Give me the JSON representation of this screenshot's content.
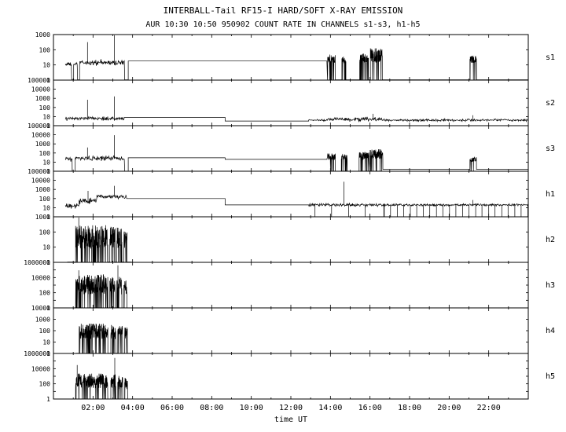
{
  "header": {
    "title": "INTERBALL-Tail RF15-I HARD/SOFT X-RAY EMISSION",
    "subtitle": "AUR 10:30 10:50 950902  COUNT RATE IN CHANNELS s1-s3, h1-h5"
  },
  "chart_data": {
    "type": "line",
    "yscale": "log",
    "grid": false,
    "xlabel": "time UT",
    "x_range_hours": [
      0,
      24
    ],
    "x_ticks": [
      {
        "hour": 2,
        "label": "02:00"
      },
      {
        "hour": 4,
        "label": "04:00"
      },
      {
        "hour": 6,
        "label": "06:00"
      },
      {
        "hour": 8,
        "label": "08:00"
      },
      {
        "hour": 10,
        "label": "10:00"
      },
      {
        "hour": 12,
        "label": "12:00"
      },
      {
        "hour": 14,
        "label": "14:00"
      },
      {
        "hour": 16,
        "label": "16:00"
      },
      {
        "hour": 18,
        "label": "18:00"
      },
      {
        "hour": 20,
        "label": "20:00"
      },
      {
        "hour": 22,
        "label": "22:00"
      }
    ],
    "channels": [
      {
        "name": "s1",
        "decades": 3,
        "ytick_labels": [
          "1000",
          "100",
          "10",
          "1"
        ],
        "ytick_decades": [
          3,
          2,
          1,
          0
        ],
        "segments": [
          {
            "type": "noise",
            "t0": 0.6,
            "t1": 0.92,
            "base": 11,
            "s": 0.12
          },
          {
            "type": "flat",
            "t0": 0.92,
            "t1": 1.02,
            "v": 1.05
          },
          {
            "type": "noise",
            "t0": 1.02,
            "t1": 1.22,
            "base": 11,
            "s": 0.1
          },
          {
            "type": "flat",
            "t0": 1.22,
            "t1": 1.32,
            "v": 1.05
          },
          {
            "type": "noise",
            "t0": 1.32,
            "t1": 3.6,
            "base": 14,
            "s": 0.18,
            "spikes": [
              {
                "t": 1.72,
                "v": 320
              },
              {
                "t": 3.08,
                "v": 900
              }
            ]
          },
          {
            "type": "flat",
            "t0": 3.6,
            "t1": 3.78,
            "v": 1.05
          },
          {
            "type": "flat",
            "t0": 3.78,
            "t1": 13.82,
            "v": 18
          },
          {
            "type": "burst",
            "t0": 13.85,
            "t1": 14.25,
            "lo": 14,
            "hi": 48
          },
          {
            "type": "flat",
            "t0": 14.25,
            "t1": 14.58,
            "v": 1.05
          },
          {
            "type": "burst",
            "t0": 14.58,
            "t1": 14.78,
            "lo": 12,
            "hi": 36
          },
          {
            "type": "flat",
            "t0": 14.78,
            "t1": 15.48,
            "v": 1.05
          },
          {
            "type": "burst",
            "t0": 15.48,
            "t1": 15.92,
            "lo": 14,
            "hi": 60
          },
          {
            "type": "flat",
            "t0": 15.92,
            "t1": 16.02,
            "v": 1.05
          },
          {
            "type": "burst",
            "t0": 16.02,
            "t1": 16.62,
            "lo": 15,
            "hi": 130
          },
          {
            "type": "flat",
            "t0": 16.62,
            "t1": 21.05,
            "v": 1.05
          },
          {
            "type": "burst",
            "t0": 21.05,
            "t1": 21.38,
            "lo": 14,
            "hi": 42
          },
          {
            "type": "flat",
            "t0": 21.38,
            "t1": 23.98,
            "v": 1.05
          }
        ]
      },
      {
        "name": "s2",
        "decades": 5,
        "ytick_labels": [
          "100000",
          "10000",
          "1000",
          "100",
          "10",
          "1"
        ],
        "ytick_decades": [
          5,
          4,
          3,
          2,
          1,
          0
        ],
        "segments": [
          {
            "type": "noise",
            "t0": 0.6,
            "t1": 3.6,
            "base": 6,
            "s": 0.18,
            "spikes": [
              {
                "t": 1.72,
                "v": 700
              },
              {
                "t": 3.08,
                "v": 1600
              }
            ]
          },
          {
            "type": "flat",
            "t0": 3.6,
            "t1": 8.68,
            "v": 8
          },
          {
            "type": "flat",
            "t0": 8.68,
            "t1": 12.9,
            "v": 3.2
          },
          {
            "type": "noise",
            "t0": 12.9,
            "t1": 13.8,
            "base": 4,
            "s": 0.1
          },
          {
            "type": "noise",
            "t0": 13.8,
            "t1": 16.6,
            "base": 5,
            "s": 0.2,
            "spikes": [
              {
                "t": 16.15,
                "v": 20
              }
            ]
          },
          {
            "type": "noise",
            "t0": 16.6,
            "t1": 23.98,
            "base": 4,
            "s": 0.13,
            "spikes": [
              {
                "t": 21.2,
                "v": 14
              }
            ]
          }
        ]
      },
      {
        "name": "s3",
        "decades": 5,
        "ytick_labels": [
          "100000",
          "10000",
          "1000",
          "100",
          "10",
          "1"
        ],
        "ytick_decades": [
          5,
          4,
          3,
          2,
          1,
          0
        ],
        "segments": [
          {
            "type": "noise",
            "t0": 0.6,
            "t1": 0.95,
            "base": 20,
            "s": 0.22
          },
          {
            "type": "flat",
            "t0": 0.95,
            "t1": 1.1,
            "v": 1.05
          },
          {
            "type": "noise",
            "t0": 1.1,
            "t1": 3.6,
            "base": 25,
            "s": 0.26,
            "spikes": [
              {
                "t": 1.72,
                "v": 400
              },
              {
                "t": 3.08,
                "v": 9000
              }
            ]
          },
          {
            "type": "flat",
            "t0": 3.6,
            "t1": 3.78,
            "v": 1.05
          },
          {
            "type": "flat",
            "t0": 3.78,
            "t1": 8.68,
            "v": 30
          },
          {
            "type": "flat",
            "t0": 8.68,
            "t1": 13.82,
            "v": 20
          },
          {
            "type": "burst",
            "t0": 13.85,
            "t1": 14.25,
            "lo": 18,
            "hi": 90
          },
          {
            "type": "flat",
            "t0": 14.25,
            "t1": 14.55,
            "v": 1.05
          },
          {
            "type": "burst",
            "t0": 14.55,
            "t1": 14.85,
            "lo": 18,
            "hi": 70
          },
          {
            "type": "flat",
            "t0": 14.85,
            "t1": 15.45,
            "v": 1.05
          },
          {
            "type": "burst",
            "t0": 15.45,
            "t1": 15.95,
            "lo": 20,
            "hi": 130
          },
          {
            "type": "burst",
            "t0": 16.0,
            "t1": 16.65,
            "lo": 22,
            "hi": 260
          },
          {
            "type": "flat",
            "t0": 16.65,
            "t1": 21.05,
            "v": 1.6
          },
          {
            "type": "burst",
            "t0": 21.05,
            "t1": 21.38,
            "lo": 10,
            "hi": 40
          },
          {
            "type": "flat",
            "t0": 21.38,
            "t1": 23.98,
            "v": 1.6
          }
        ]
      },
      {
        "name": "h1",
        "decades": 5,
        "ytick_labels": [
          "100000",
          "10000",
          "1000",
          "100",
          "10",
          "1"
        ],
        "ytick_decades": [
          5,
          4,
          3,
          2,
          1,
          0
        ],
        "segments": [
          {
            "type": "noise",
            "t0": 0.6,
            "t1": 1.3,
            "base": 15,
            "s": 0.28
          },
          {
            "type": "noise",
            "t0": 1.3,
            "t1": 2.2,
            "base": 60,
            "s": 0.3,
            "spikes": [
              {
                "t": 1.75,
                "v": 700
              }
            ]
          },
          {
            "type": "noise",
            "t0": 2.2,
            "t1": 3.7,
            "base": 160,
            "s": 0.2,
            "spikes": [
              {
                "t": 3.08,
                "v": 2500
              }
            ]
          },
          {
            "type": "flat",
            "t0": 3.7,
            "t1": 8.68,
            "v": 100
          },
          {
            "type": "flat",
            "t0": 8.68,
            "t1": 12.9,
            "v": 20
          },
          {
            "type": "noise",
            "t0": 12.9,
            "t1": 16.6,
            "base": 20,
            "s": 0.15,
            "spikes": [
              {
                "t": 14.68,
                "v": 7000
              }
            ],
            "dropEvery": 0.85,
            "dropFrom": 13.2
          },
          {
            "type": "noise",
            "t0": 16.6,
            "t1": 23.98,
            "base": 20,
            "s": 0.12,
            "spikes": [
              {
                "t": 21.2,
                "v": 70
              }
            ],
            "dropEvery": 0.33,
            "dropFrom": 16.7
          }
        ]
      },
      {
        "name": "h2",
        "decades": 3,
        "ytick_labels": [
          "1000",
          "100",
          "10",
          "1"
        ],
        "ytick_decades": [
          3,
          2,
          1,
          0
        ],
        "segments": [
          {
            "type": "flat",
            "t0": 0.7,
            "t1": 1.12,
            "v": 1.05
          },
          {
            "type": "burst",
            "t0": 1.12,
            "t1": 2.75,
            "lo": 8,
            "hi": 280,
            "spikes": [
              {
                "t": 1.28,
                "v": 900
              }
            ]
          },
          {
            "type": "flat",
            "t0": 2.75,
            "t1": 2.85,
            "v": 1.05
          },
          {
            "type": "burst",
            "t0": 2.85,
            "t1": 3.12,
            "lo": 8,
            "hi": 220
          },
          {
            "type": "flat",
            "t0": 3.12,
            "t1": 3.2,
            "v": 1.05
          },
          {
            "type": "burst",
            "t0": 3.2,
            "t1": 3.46,
            "lo": 8,
            "hi": 200
          },
          {
            "type": "flat",
            "t0": 3.46,
            "t1": 3.56,
            "v": 1.05
          },
          {
            "type": "burst",
            "t0": 3.56,
            "t1": 3.72,
            "lo": 8,
            "hi": 150
          },
          {
            "type": "flat",
            "t0": 3.72,
            "t1": 3.95,
            "v": 1.05
          }
        ]
      },
      {
        "name": "h3",
        "decades": 6,
        "ytick_labels": [
          "1000000",
          "10000",
          "100",
          "1"
        ],
        "ytick_decades": [
          6,
          4,
          2,
          0
        ],
        "segments": [
          {
            "type": "flat",
            "t0": 0.7,
            "t1": 1.12,
            "v": 1.05
          },
          {
            "type": "burst",
            "t0": 1.12,
            "t1": 2.75,
            "lo": 60,
            "hi": 25000,
            "spikes": [
              {
                "t": 1.28,
                "v": 90000
              }
            ]
          },
          {
            "type": "flat",
            "t0": 2.75,
            "t1": 2.85,
            "v": 1.05
          },
          {
            "type": "burst",
            "t0": 2.85,
            "t1": 3.12,
            "lo": 60,
            "hi": 12000
          },
          {
            "type": "flat",
            "t0": 3.12,
            "t1": 3.2,
            "v": 1.05
          },
          {
            "type": "burst",
            "t0": 3.2,
            "t1": 3.46,
            "lo": 60,
            "hi": 12000,
            "spikes": [
              {
                "t": 3.26,
                "v": 400000
              }
            ]
          },
          {
            "type": "flat",
            "t0": 3.46,
            "t1": 3.56,
            "v": 1.05
          },
          {
            "type": "burst",
            "t0": 3.56,
            "t1": 3.72,
            "lo": 50,
            "hi": 6000
          },
          {
            "type": "flat",
            "t0": 3.72,
            "t1": 3.95,
            "v": 1.05
          }
        ]
      },
      {
        "name": "h4",
        "decades": 4,
        "ytick_labels": [
          "10000",
          "1000",
          "100",
          "10",
          "1"
        ],
        "ytick_decades": [
          4,
          3,
          2,
          1,
          0
        ],
        "segments": [
          {
            "type": "flat",
            "t0": 1.15,
            "t1": 1.3,
            "v": 1.05
          },
          {
            "type": "burst",
            "t0": 1.3,
            "t1": 2.75,
            "lo": 18,
            "hi": 420
          },
          {
            "type": "flat",
            "t0": 2.75,
            "t1": 2.9,
            "v": 1.05
          },
          {
            "type": "burst",
            "t0": 2.9,
            "t1": 3.15,
            "lo": 18,
            "hi": 320
          },
          {
            "type": "flat",
            "t0": 3.15,
            "t1": 3.25,
            "v": 1.05
          },
          {
            "type": "burst",
            "t0": 3.25,
            "t1": 3.5,
            "lo": 18,
            "hi": 300
          },
          {
            "type": "flat",
            "t0": 3.5,
            "t1": 3.6,
            "v": 1.05
          },
          {
            "type": "burst",
            "t0": 3.6,
            "t1": 3.75,
            "lo": 15,
            "hi": 220
          },
          {
            "type": "flat",
            "t0": 3.75,
            "t1": 3.95,
            "v": 1.05
          }
        ]
      },
      {
        "name": "h5",
        "decades": 6,
        "ytick_labels": [
          "1000000",
          "10000",
          "100",
          "1"
        ],
        "ytick_decades": [
          6,
          4,
          2,
          0
        ],
        "segments": [
          {
            "type": "flat",
            "t0": 0.7,
            "t1": 1.12,
            "v": 1.05
          },
          {
            "type": "burst",
            "t0": 1.12,
            "t1": 2.75,
            "lo": 25,
            "hi": 2500,
            "spikes": [
              {
                "t": 1.2,
                "v": 30000
              }
            ]
          },
          {
            "type": "flat",
            "t0": 2.75,
            "t1": 2.9,
            "v": 1.05
          },
          {
            "type": "burst",
            "t0": 2.9,
            "t1": 3.15,
            "lo": 25,
            "hi": 1800,
            "spikes": [
              {
                "t": 3.1,
                "v": 250000
              }
            ]
          },
          {
            "type": "flat",
            "t0": 3.15,
            "t1": 3.25,
            "v": 1.05
          },
          {
            "type": "burst",
            "t0": 3.25,
            "t1": 3.5,
            "lo": 20,
            "hi": 1200
          },
          {
            "type": "flat",
            "t0": 3.5,
            "t1": 3.6,
            "v": 1.05
          },
          {
            "type": "burst",
            "t0": 3.6,
            "t1": 3.75,
            "lo": 15,
            "hi": 600
          },
          {
            "type": "flat",
            "t0": 3.75,
            "t1": 3.95,
            "v": 1.05
          }
        ]
      }
    ]
  }
}
